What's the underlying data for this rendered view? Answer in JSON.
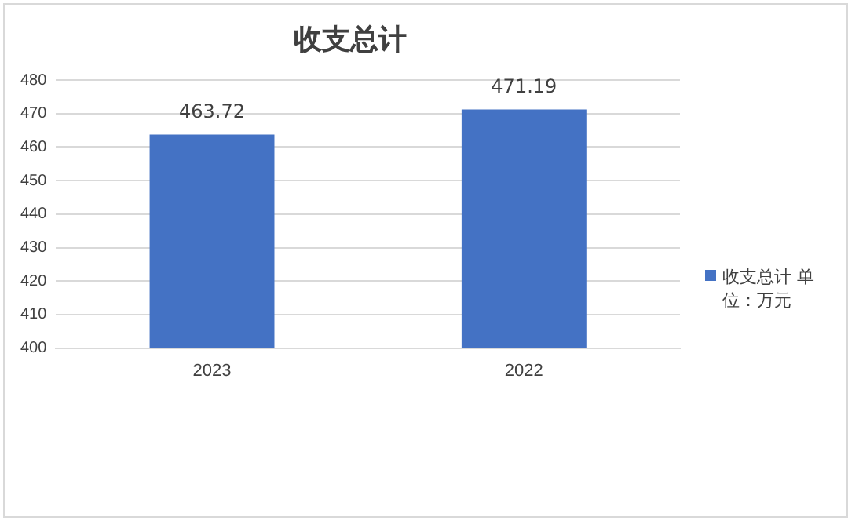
{
  "chart_data": {
    "type": "bar",
    "title": "收支总计",
    "categories": [
      "2023",
      "2022"
    ],
    "series": [
      {
        "name": "收支总计 单位：万元",
        "color": "#4472c4",
        "values": [
          463.72,
          471.19
        ]
      }
    ],
    "ylim": [
      400,
      480
    ],
    "yticks": [
      400,
      410,
      420,
      430,
      440,
      450,
      460,
      470,
      480
    ],
    "grid": "y",
    "legend": "right",
    "data_labels": true
  }
}
